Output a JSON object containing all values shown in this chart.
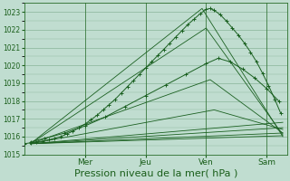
{
  "background_color": "#c0ddd0",
  "plot_bg_color": "#c0ddd0",
  "grid_color": "#7aaa8a",
  "line_color": "#1a6020",
  "ylim": [
    1015.0,
    1023.5
  ],
  "yticks": [
    1015,
    1016,
    1017,
    1018,
    1019,
    1020,
    1021,
    1022,
    1023
  ],
  "xlabel": "Pression niveau de la mer( hPa )",
  "xlabel_fontsize": 8,
  "day_labels": [
    "Mer",
    "Jeu",
    "Ven",
    "Sam"
  ],
  "day_positions": [
    1.5,
    3.0,
    4.5,
    6.0
  ],
  "xlim": [
    0.0,
    6.5
  ],
  "fan_lines": [
    {
      "x": [
        0.15,
        4.4,
        6.4
      ],
      "y": [
        1015.6,
        1023.2,
        1016.0
      ]
    },
    {
      "x": [
        0.15,
        4.5,
        6.4
      ],
      "y": [
        1015.6,
        1022.1,
        1016.1
      ]
    },
    {
      "x": [
        0.15,
        4.6,
        6.4
      ],
      "y": [
        1015.6,
        1019.2,
        1016.2
      ]
    },
    {
      "x": [
        0.15,
        4.7,
        6.4
      ],
      "y": [
        1015.6,
        1017.5,
        1016.4
      ]
    },
    {
      "x": [
        0.15,
        6.4
      ],
      "y": [
        1015.6,
        1016.8
      ]
    },
    {
      "x": [
        0.15,
        6.4
      ],
      "y": [
        1015.6,
        1016.5
      ]
    },
    {
      "x": [
        0.15,
        6.4
      ],
      "y": [
        1015.6,
        1016.2
      ]
    },
    {
      "x": [
        0.15,
        6.4
      ],
      "y": [
        1015.6,
        1016.05
      ]
    }
  ],
  "main_dotted": {
    "x": [
      0.0,
      0.15,
      0.3,
      0.45,
      0.6,
      0.75,
      0.9,
      1.05,
      1.2,
      1.35,
      1.5,
      1.65,
      1.8,
      1.95,
      2.1,
      2.25,
      2.4,
      2.55,
      2.7,
      2.85,
      3.0,
      3.15,
      3.3,
      3.45,
      3.6,
      3.75,
      3.9,
      4.05,
      4.2,
      4.35,
      4.5,
      4.6,
      4.7,
      4.85,
      5.0,
      5.15,
      5.3,
      5.45,
      5.6,
      5.75,
      5.9,
      6.05,
      6.2,
      6.35
    ],
    "y": [
      1015.6,
      1015.65,
      1015.7,
      1015.75,
      1015.82,
      1015.9,
      1016.0,
      1016.15,
      1016.3,
      1016.5,
      1016.7,
      1016.95,
      1017.2,
      1017.5,
      1017.8,
      1018.1,
      1018.45,
      1018.8,
      1019.15,
      1019.5,
      1019.85,
      1020.2,
      1020.55,
      1020.9,
      1021.25,
      1021.6,
      1021.95,
      1022.3,
      1022.6,
      1022.9,
      1023.15,
      1023.2,
      1023.1,
      1022.85,
      1022.5,
      1022.1,
      1021.7,
      1021.25,
      1020.75,
      1020.2,
      1019.55,
      1018.85,
      1018.1,
      1017.3
    ]
  },
  "curve_line": {
    "x": [
      0.15,
      0.5,
      1.0,
      1.5,
      2.0,
      2.5,
      3.0,
      3.5,
      4.0,
      4.5,
      4.8,
      5.1,
      5.4,
      5.7,
      6.0,
      6.3
    ],
    "y": [
      1015.7,
      1015.9,
      1016.2,
      1016.6,
      1017.1,
      1017.7,
      1018.3,
      1018.9,
      1019.5,
      1020.1,
      1020.4,
      1020.2,
      1019.8,
      1019.3,
      1018.7,
      1018.0
    ]
  }
}
